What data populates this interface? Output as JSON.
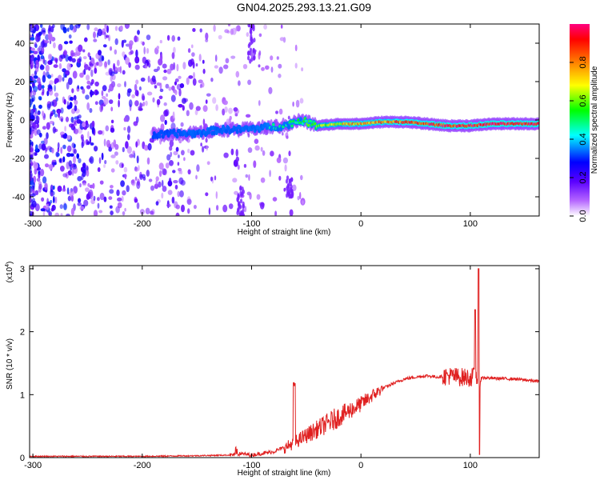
{
  "figure": {
    "title": "GN04.2025.293.13.21.G09"
  },
  "chart_data": [
    {
      "type": "heatmap",
      "xlabel": "Height of straight line (km)",
      "ylabel": "Frequency (Hz)",
      "xlim": [
        -303,
        163
      ],
      "ylim": [
        -50,
        50
      ],
      "xticks": [
        -300,
        -200,
        -100,
        0,
        100
      ],
      "yticks": [
        -40,
        -20,
        0,
        20,
        40
      ],
      "colorbar": {
        "label": "Normalized spectral amplitude",
        "range": [
          0,
          1
        ],
        "ticks": [
          "0.0",
          "0.2",
          "0.4",
          "0.6",
          "0.8"
        ],
        "colors": [
          "#ffffff",
          "#7b00ff",
          "#0000ff",
          "#00ffff",
          "#00ff00",
          "#ffff00",
          "#ff8000",
          "#ff0000",
          "#ff0080"
        ]
      },
      "ridge": {
        "x": [
          -190,
          -170,
          -150,
          -130,
          -110,
          -90,
          -70,
          -55,
          -40,
          -20,
          0,
          20,
          40,
          60,
          80,
          100,
          120,
          140,
          160
        ],
        "freq": [
          -8,
          -7,
          -7,
          -5,
          -5,
          -4,
          -3,
          0,
          -3,
          -2,
          -2,
          -1,
          -1,
          -2,
          -3,
          -3,
          -2,
          -2,
          -2
        ],
        "amplitude": [
          0.25,
          0.3,
          0.35,
          0.35,
          0.35,
          0.4,
          0.45,
          0.5,
          0.6,
          0.7,
          0.75,
          0.8,
          0.85,
          0.9,
          0.9,
          0.95,
          0.95,
          0.95,
          0.95
        ]
      },
      "grid": false
    },
    {
      "type": "line",
      "xlabel": "Height of straight line (km)",
      "ylabel": "SNR (10 * v/v)",
      "y_multiplier": "(x10",
      "y_multiplier_exp": "4",
      "y_multiplier_close": ")",
      "xlim": [
        -303,
        163
      ],
      "ylim": [
        0,
        3.05
      ],
      "xticks": [
        -300,
        -200,
        -100,
        0,
        100
      ],
      "yticks": [
        0,
        1,
        2,
        3
      ],
      "series": [
        {
          "color": "#e02020",
          "x": [
            -303,
            -250,
            -200,
            -150,
            -120,
            -110,
            -100,
            -80,
            -70,
            -60,
            -50,
            -40,
            -30,
            -20,
            -10,
            0,
            10,
            20,
            30,
            40,
            50,
            60,
            70,
            80,
            90,
            100,
            105,
            108,
            109,
            110,
            120,
            140,
            163
          ],
          "y": [
            0.01,
            0.01,
            0.01,
            0.02,
            0.03,
            0.05,
            0.03,
            0.08,
            0.15,
            0.25,
            0.35,
            0.45,
            0.55,
            0.65,
            0.75,
            0.85,
            0.98,
            1.1,
            1.18,
            1.25,
            1.28,
            1.3,
            1.28,
            1.3,
            1.28,
            1.27,
            1.3,
            1.25,
            1.27,
            1.27,
            1.26,
            1.25,
            1.21
          ]
        }
      ],
      "grid": false
    }
  ]
}
